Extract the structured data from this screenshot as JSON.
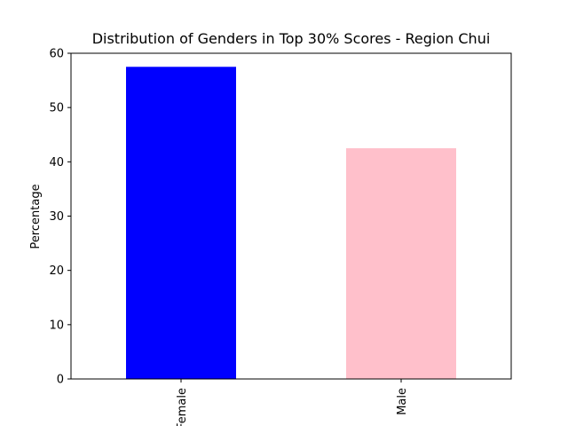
{
  "chart_data": {
    "type": "bar",
    "title": "Distribution of Genders in Top 30% Scores - Region Chui",
    "xlabel": "",
    "ylabel": "Percentage",
    "categories": [
      "Female",
      "Male"
    ],
    "values": [
      57.5,
      42.5
    ],
    "colors": [
      "#0000ff",
      "#ffc0cb"
    ],
    "ylim": [
      0,
      60
    ],
    "yticks": [
      0,
      10,
      20,
      30,
      40,
      50,
      60
    ],
    "grid": false,
    "legend": "none"
  }
}
